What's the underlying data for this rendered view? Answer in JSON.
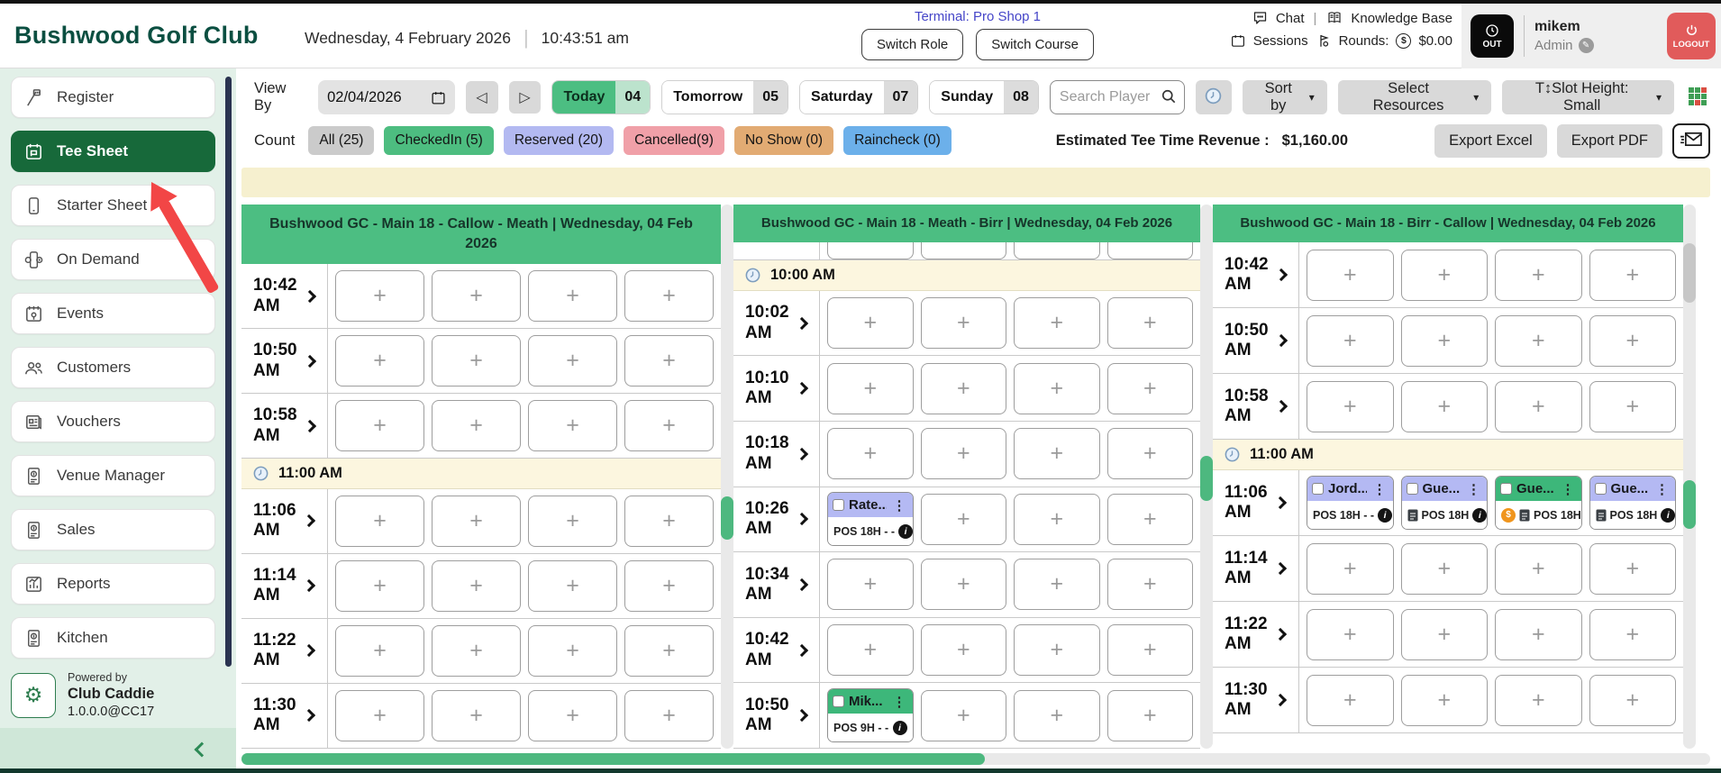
{
  "app": {
    "title": "Bushwood Golf Club",
    "date": "Wednesday, 4 February 2026",
    "time": "10:43:51 am",
    "terminal": "Terminal: Pro Shop 1",
    "switch_role": "Switch Role",
    "switch_course": "Switch Course",
    "chat": "Chat",
    "knowledge_base": "Knowledge Base",
    "sessions": "Sessions",
    "rounds_label": "Rounds:",
    "rounds_value": "$0.00",
    "clock_status": "OUT",
    "user_name": "mikem",
    "user_role": "Admin",
    "logout": "LOGOUT"
  },
  "sidebar": {
    "items": [
      {
        "label": "Register",
        "icon": "register-icon",
        "active": false
      },
      {
        "label": "Tee Sheet",
        "icon": "tee-sheet-icon",
        "active": true
      },
      {
        "label": "Starter Sheet",
        "icon": "starter-sheet-icon",
        "active": false
      },
      {
        "label": "On Demand",
        "icon": "on-demand-icon",
        "active": false
      },
      {
        "label": "Events",
        "icon": "events-icon",
        "active": false
      },
      {
        "label": "Customers",
        "icon": "customers-icon",
        "active": false
      },
      {
        "label": "Vouchers",
        "icon": "vouchers-icon",
        "active": false
      },
      {
        "label": "Venue Manager",
        "icon": "venue-manager-icon",
        "active": false
      },
      {
        "label": "Sales",
        "icon": "sales-icon",
        "active": false
      },
      {
        "label": "Reports",
        "icon": "reports-icon",
        "active": false
      },
      {
        "label": "Kitchen",
        "icon": "kitchen-icon",
        "active": false
      }
    ],
    "powered_by": "Powered by",
    "brand": "Club Caddie",
    "version": "1.0.0.0@CC17"
  },
  "toolbar": {
    "view_by_label": "View By",
    "date_value": "02/04/2026",
    "day_buttons": [
      {
        "label": "Today",
        "num": "04",
        "active": true
      },
      {
        "label": "Tomorrow",
        "num": "05",
        "active": false
      },
      {
        "label": "Saturday",
        "num": "07",
        "active": false
      },
      {
        "label": "Sunday",
        "num": "08",
        "active": false
      }
    ],
    "search_placeholder": "Search Player",
    "sort_by": "Sort by",
    "select_resources": "Select Resources",
    "slot_height": "T↕Slot Height: Small"
  },
  "counts": {
    "label": "Count",
    "badges": [
      {
        "label": "All (25)",
        "color": "#cbcbcb"
      },
      {
        "label": "CheckedIn (5)",
        "color": "#4dbd80"
      },
      {
        "label": "Reserved (20)",
        "color": "#b3b9f1"
      },
      {
        "label": "Cancelled(9)",
        "color": "#f0a0a8"
      },
      {
        "label": "No Show (0)",
        "color": "#e2ab73"
      },
      {
        "label": "Raincheck (0)",
        "color": "#6cb0ea"
      }
    ],
    "revenue_label": "Estimated Tee Time Revenue :",
    "revenue_value": "$1,160.00",
    "export_excel": "Export Excel",
    "export_pdf": "Export PDF"
  },
  "colors": {
    "accent_green": "#4cbe82",
    "booking_purple": "#b4b9f3",
    "booking_green": "#3db77a",
    "active_nav": "#17693a",
    "brand_text": "#0b4f41",
    "terminal_text": "#4545c8",
    "logout_red": "#e15b5b"
  },
  "tee_sheet": {
    "columns": [
      {
        "header": "Bushwood GC - Main 18 - Callow - Meath | Wednesday, 04 Feb 2026",
        "rows": [
          {
            "type": "time",
            "time": "10:42",
            "ampm": "AM",
            "slots": [
              null,
              null,
              null,
              null
            ]
          },
          {
            "type": "time",
            "time": "10:50",
            "ampm": "AM",
            "slots": [
              null,
              null,
              null,
              null
            ]
          },
          {
            "type": "time",
            "time": "10:58",
            "ampm": "AM",
            "slots": [
              null,
              null,
              null,
              null
            ]
          },
          {
            "type": "divider",
            "label": "11:00 AM"
          },
          {
            "type": "time",
            "time": "11:06",
            "ampm": "AM",
            "slots": [
              null,
              null,
              null,
              null
            ]
          },
          {
            "type": "time",
            "time": "11:14",
            "ampm": "AM",
            "slots": [
              null,
              null,
              null,
              null
            ]
          },
          {
            "type": "time",
            "time": "11:22",
            "ampm": "AM",
            "slots": [
              null,
              null,
              null,
              null
            ]
          },
          {
            "type": "time",
            "time": "11:30",
            "ampm": "AM",
            "slots": [
              null,
              null,
              null,
              null
            ]
          }
        ]
      },
      {
        "header": "Bushwood GC - Main 18 - Meath - Birr | Wednesday, 04 Feb 2026",
        "rows": [
          {
            "type": "partial"
          },
          {
            "type": "divider",
            "label": "10:00 AM"
          },
          {
            "type": "time",
            "time": "10:02",
            "ampm": "AM",
            "slots": [
              null,
              null,
              null,
              null
            ]
          },
          {
            "type": "time",
            "time": "10:10",
            "ampm": "AM",
            "slots": [
              null,
              null,
              null,
              null
            ]
          },
          {
            "type": "time",
            "time": "10:18",
            "ampm": "AM",
            "slots": [
              null,
              null,
              null,
              null
            ]
          },
          {
            "type": "time",
            "time": "10:26",
            "ampm": "AM",
            "slots": [
              {
                "name": "Rate...",
                "variant": "purple",
                "line": "POS 18H - -",
                "info": true
              },
              null,
              null,
              null
            ]
          },
          {
            "type": "time",
            "time": "10:34",
            "ampm": "AM",
            "slots": [
              null,
              null,
              null,
              null
            ]
          },
          {
            "type": "time",
            "time": "10:42",
            "ampm": "AM",
            "slots": [
              null,
              null,
              null,
              null
            ]
          },
          {
            "type": "time",
            "time": "10:50",
            "ampm": "AM",
            "slots": [
              {
                "name": "Mik...",
                "variant": "green",
                "line": "POS 9H - -",
                "info": true
              },
              null,
              null,
              null
            ]
          }
        ]
      },
      {
        "header": "Bushwood GC - Main 18 - Birr - Callow | Wednesday, 04 Feb 2026",
        "rows": [
          {
            "type": "time",
            "time": "10:42",
            "ampm": "AM",
            "slots": [
              null,
              null,
              null,
              null
            ]
          },
          {
            "type": "time",
            "time": "10:50",
            "ampm": "AM",
            "slots": [
              null,
              null,
              null,
              null
            ]
          },
          {
            "type": "time",
            "time": "10:58",
            "ampm": "AM",
            "slots": [
              null,
              null,
              null,
              null
            ]
          },
          {
            "type": "divider",
            "label": "11:00 AM"
          },
          {
            "type": "time",
            "time": "11:06",
            "ampm": "AM",
            "slots": [
              {
                "name": "Jord...",
                "variant": "purple",
                "line": "POS 18H - -",
                "info": true
              },
              {
                "name": "Gue...",
                "variant": "purple",
                "line": "POS 18H",
                "note": true,
                "info": true
              },
              {
                "name": "Gue...",
                "variant": "green",
                "line": "POS 18H",
                "money": true,
                "note": true,
                "info": true
              },
              {
                "name": "Gue...",
                "variant": "purple",
                "line": "POS 18H",
                "note": true,
                "info": true
              }
            ]
          },
          {
            "type": "time",
            "time": "11:14",
            "ampm": "AM",
            "slots": [
              null,
              null,
              null,
              null
            ]
          },
          {
            "type": "time",
            "time": "11:22",
            "ampm": "AM",
            "slots": [
              null,
              null,
              null,
              null
            ]
          },
          {
            "type": "time",
            "time": "11:30",
            "ampm": "AM",
            "slots": [
              null,
              null,
              null,
              null
            ]
          }
        ]
      }
    ]
  }
}
